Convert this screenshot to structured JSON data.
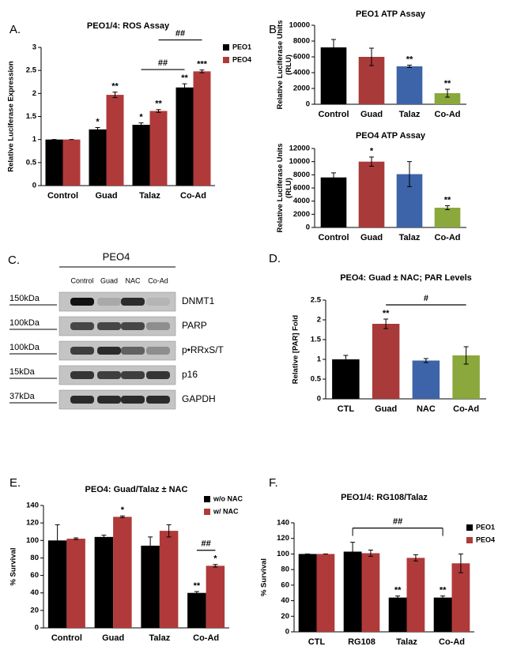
{
  "chart_data": [
    {
      "type": "bar",
      "panel_label": "A.",
      "title": "PEO1/4: ROS Assay",
      "ylabel": [
        "Relative Luciferase Expression"
      ],
      "categories": [
        "Control",
        "Guad",
        "Talaz",
        "Co-Ad"
      ],
      "series": [
        {
          "name": "PEO1",
          "color": "#000000",
          "values": [
            1,
            1.22,
            1.32,
            2.13
          ],
          "errors": [
            0,
            0.04,
            0.04,
            0.08
          ],
          "significance": [
            null,
            "*",
            "*",
            "**"
          ]
        },
        {
          "name": "PEO4",
          "color": "#b03a3a",
          "values": [
            1,
            1.97,
            1.62,
            2.48
          ],
          "errors": [
            0,
            0.06,
            0.03,
            0.03
          ],
          "significance": [
            null,
            "**",
            "**",
            "***"
          ]
        }
      ],
      "ylim": [
        0,
        3
      ],
      "yticks": [
        0,
        0.5,
        1,
        1.5,
        2,
        2.5,
        3
      ],
      "legend": "upper right",
      "comparisons": [
        {
          "label": "##",
          "from": {
            "series": "PEO1",
            "category": "Talaz"
          },
          "to": {
            "series": "PEO1",
            "category": "Co-Ad"
          }
        },
        {
          "label": "##",
          "from": {
            "series": "PEO4",
            "category": "Talaz"
          },
          "to": {
            "series": "PEO4",
            "category": "Co-Ad"
          }
        }
      ]
    },
    {
      "type": "bar",
      "panel_label": "B.",
      "title": "PEO1 ATP Assay",
      "ylabel": [
        "Relative Luciferase Units",
        "(RLU)"
      ],
      "categories": [
        "Control",
        "Guad",
        "Talaz",
        "Co-Ad"
      ],
      "values": [
        7200,
        6000,
        4800,
        1400
      ],
      "errors": [
        1000,
        1100,
        150,
        500
      ],
      "significance": [
        null,
        null,
        "**",
        "**"
      ],
      "colors": [
        "#000000",
        "#a83a3a",
        "#3d64a8",
        "#8aa83c"
      ],
      "ylim": [
        0,
        10000
      ],
      "yticks": [
        0,
        2000,
        4000,
        6000,
        8000,
        10000
      ]
    },
    {
      "type": "bar",
      "title": "PEO4 ATP Assay",
      "ylabel": [
        "Relative Luciferase Units",
        "(RLU)"
      ],
      "categories": [
        "Control",
        "Guad",
        "Talaz",
        "Co-Ad"
      ],
      "values": [
        7600,
        10000,
        8100,
        3000
      ],
      "errors": [
        700,
        700,
        1900,
        300
      ],
      "significance": [
        null,
        "*",
        null,
        "**"
      ],
      "colors": [
        "#000000",
        "#a83a3a",
        "#3d64a8",
        "#8aa83c"
      ],
      "ylim": [
        0,
        12000
      ],
      "yticks": [
        0,
        2000,
        4000,
        6000,
        8000,
        10000,
        12000
      ]
    },
    {
      "type": "bar",
      "panel_label": "D.",
      "title": "PEO4: Guad ± NAC; PAR Levels",
      "ylabel": [
        "Relative [PAR] Fold"
      ],
      "categories": [
        "CTL",
        "Guad",
        "NAC",
        "Co-Ad"
      ],
      "values": [
        1.0,
        1.9,
        0.97,
        1.1
      ],
      "errors": [
        0.1,
        0.12,
        0.05,
        0.22
      ],
      "significance": [
        null,
        "**",
        null,
        null
      ],
      "colors": [
        "#000000",
        "#a83a3a",
        "#3d64a8",
        "#8aa83c"
      ],
      "ylim": [
        0,
        2.5
      ],
      "yticks": [
        0,
        0.5,
        1,
        1.5,
        2,
        2.5
      ],
      "comparisons": [
        {
          "label": "#",
          "from": {
            "category": "Guad"
          },
          "to": {
            "category": "Co-Ad"
          }
        }
      ]
    },
    {
      "type": "bar",
      "panel_label": "E.",
      "title": "PEO4: Guad/Talaz ± NAC",
      "ylabel": [
        "% Survival"
      ],
      "categories": [
        "Control",
        "Guad",
        "Talaz",
        "Co-Ad"
      ],
      "series": [
        {
          "name": "w/o NAC",
          "color": "#000000",
          "values": [
            100,
            104,
            94,
            40
          ],
          "errors": [
            18,
            2,
            10,
            1.5
          ],
          "significance": [
            null,
            null,
            null,
            "**"
          ]
        },
        {
          "name": "w/ NAC",
          "color": "#b03a3a",
          "values": [
            102,
            127,
            111,
            71
          ],
          "errors": [
            1,
            1,
            7,
            1.5
          ],
          "significance": [
            null,
            "*",
            null,
            "*"
          ]
        }
      ],
      "ylim": [
        0,
        140
      ],
      "yticks": [
        0,
        20,
        40,
        60,
        80,
        100,
        120,
        140
      ],
      "legend": "upper right",
      "comparisons": [
        {
          "label": "##",
          "from": {
            "series": "w/o NAC",
            "category": "Co-Ad"
          },
          "to": {
            "series": "w/ NAC",
            "category": "Co-Ad"
          }
        }
      ]
    },
    {
      "type": "bar",
      "panel_label": "F.",
      "title": "PEO1/4: RG108/Talaz",
      "ylabel": [
        "% Survival"
      ],
      "categories": [
        "CTL",
        "RG108",
        "Talaz",
        "Co-Ad"
      ],
      "series": [
        {
          "name": "PEO1",
          "color": "#000000",
          "values": [
            100,
            103,
            44,
            44
          ],
          "errors": [
            0,
            12,
            2,
            2
          ],
          "significance": [
            null,
            null,
            "**",
            "**"
          ]
        },
        {
          "name": "PEO4",
          "color": "#b03a3a",
          "values": [
            100,
            101,
            95,
            88
          ],
          "errors": [
            0,
            4,
            4,
            12
          ],
          "significance": [
            null,
            null,
            null,
            null
          ]
        }
      ],
      "ylim": [
        0,
        140
      ],
      "yticks": [
        0,
        20,
        40,
        60,
        80,
        100,
        120,
        140
      ],
      "legend": "upper right",
      "comparisons": [
        {
          "label": "##",
          "from": {
            "series": "PEO1",
            "category": "RG108"
          },
          "to": {
            "series": "PEO1",
            "category": "Co-Ad"
          }
        }
      ]
    }
  ],
  "blot": {
    "panel_label": "C.",
    "header": "PEO4",
    "lanes": [
      "Control",
      "Guad",
      "NAC",
      "Co-Ad"
    ],
    "rows": [
      {
        "marker": "150kDa",
        "label": "DNMT1"
      },
      {
        "marker": "100kDa",
        "label": "PARP"
      },
      {
        "marker": "100kDa",
        "label": "p•RRxS/T"
      },
      {
        "marker": "15kDa",
        "label": "p16"
      },
      {
        "marker": "37kDa",
        "label": "GAPDH"
      }
    ]
  }
}
